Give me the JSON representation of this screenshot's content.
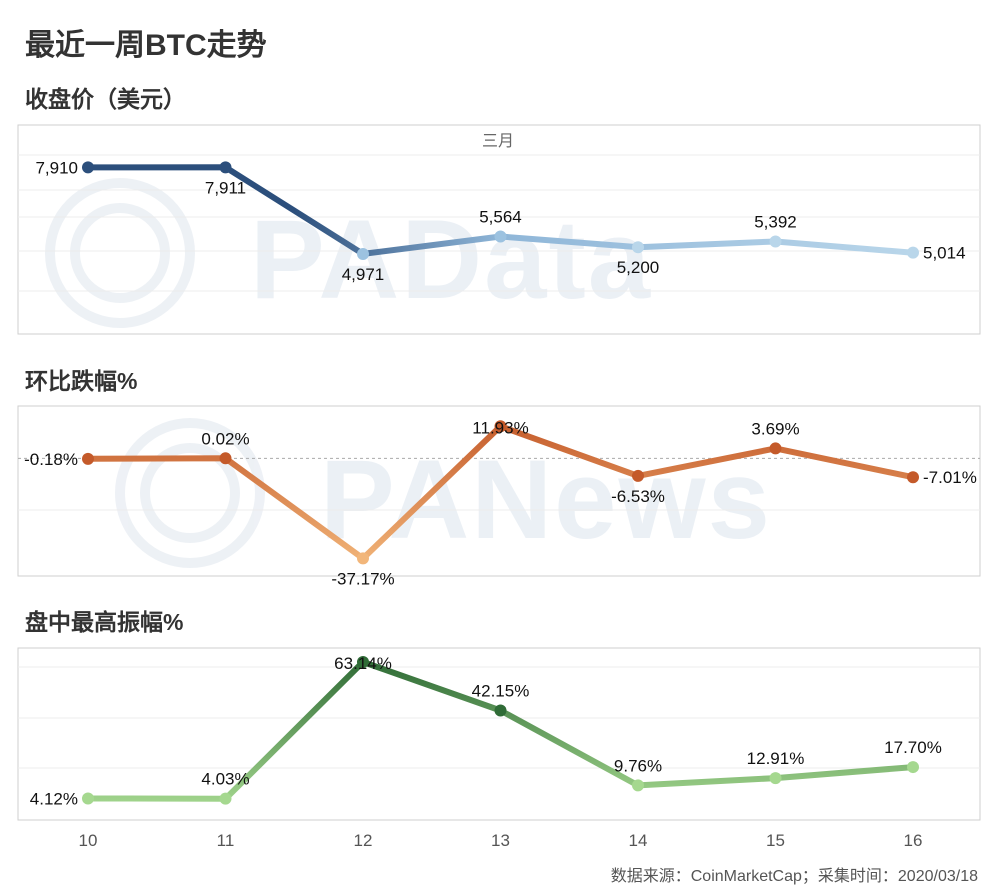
{
  "title": "最近一周BTC走势",
  "source": "数据来源：CoinMarketCap；采集时间：2020/03/18",
  "watermarks": [
    "PAData",
    "PANews"
  ],
  "colors": {
    "close_start": "#2c4f7c",
    "close_end": "#b9d6ea",
    "change_dark": "#c45a2a",
    "change_light": "#f2b67a",
    "amp_dark": "#2f6b36",
    "amp_light": "#a5d88f"
  },
  "chart_data": [
    {
      "type": "line",
      "title": "收盘价（美元）",
      "month_label": "三月",
      "x": [
        "10",
        "11",
        "12",
        "13",
        "14",
        "15",
        "16"
      ],
      "values": [
        7910,
        7911,
        4971,
        5564,
        5200,
        5392,
        5014
      ],
      "labels": [
        "7,910",
        "7,911",
        "4,971",
        "5,564",
        "5,200",
        "5,392",
        "5,014"
      ],
      "label_pos": [
        "left",
        "below",
        "below",
        "above",
        "below",
        "above",
        "right"
      ],
      "ylim": [
        3000,
        8500
      ],
      "grid": true
    },
    {
      "type": "line",
      "title": "环比跌幅%",
      "x": [
        "10",
        "11",
        "12",
        "13",
        "14",
        "15",
        "16"
      ],
      "values": [
        -0.18,
        0.02,
        -37.17,
        11.93,
        -6.53,
        3.69,
        -7.01
      ],
      "labels": [
        "-0.18%",
        "0.02%",
        "-37.17%",
        "11.93%",
        "-6.53%",
        "3.69%",
        "-7.01%"
      ],
      "label_pos": [
        "left",
        "above",
        "below",
        "center",
        "below",
        "above",
        "right"
      ],
      "ylim": [
        -40,
        15
      ],
      "zero_line": true,
      "grid": true
    },
    {
      "type": "line",
      "title": "盘中最高振幅%",
      "x": [
        "10",
        "11",
        "12",
        "13",
        "14",
        "15",
        "16"
      ],
      "values": [
        4.12,
        4.03,
        63.14,
        42.15,
        9.76,
        12.91,
        17.7
      ],
      "labels": [
        "4.12%",
        "4.03%",
        "63.14%",
        "42.15%",
        "9.76%",
        "12.91%",
        "17.70%"
      ],
      "label_pos": [
        "left",
        "above",
        "center",
        "above",
        "above",
        "above",
        "above"
      ],
      "ylim": [
        0,
        64
      ],
      "grid": true
    }
  ]
}
